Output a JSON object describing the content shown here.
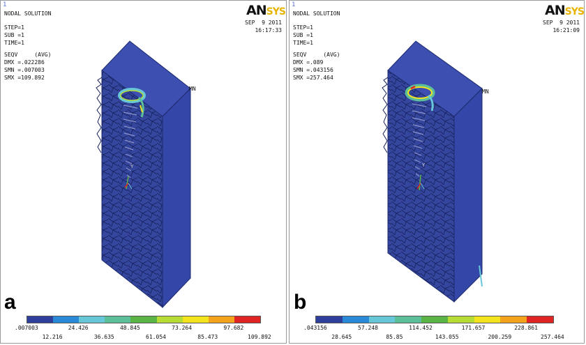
{
  "colormap": [
    "#2f3f9c",
    "#2b8ad8",
    "#67c7d8",
    "#5dbf99",
    "#5ab445",
    "#b7dc35",
    "#f3e41d",
    "#f5a21c",
    "#e02323"
  ],
  "panels": [
    {
      "id": "a",
      "corner_index": "1",
      "title": "NODAL SOLUTION",
      "step": "STEP=1",
      "sub": "SUB =1",
      "time": "TIME=1",
      "seqv": "SEQV     (AVG)",
      "dmx": "DMX =.022286",
      "smn": "SMN =.007003",
      "smx": "SMX =109.892",
      "logo_an": "AN",
      "logo_sys": "SYS",
      "date": "SEP  9 2011",
      "time_stamp": "16:17:33",
      "mn_label": "MN",
      "fig_label": "a",
      "ticks_top": [
        ".007003",
        "24.426",
        "48.845",
        "73.264",
        "97.682"
      ],
      "ticks_bottom": [
        "12.216",
        "36.635",
        "61.054",
        "85.473",
        "109.892"
      ]
    },
    {
      "id": "b",
      "corner_index": "1",
      "title": "NODAL SOLUTION",
      "step": "STEP=1",
      "sub": "SUB =1",
      "time": "TIME=1",
      "seqv": "SEQV     (AVG)",
      "dmx": "DMX =.089",
      "smn": "SMN =.043156",
      "smx": "SMX =257.464",
      "logo_an": "AN",
      "logo_sys": "SYS",
      "date": "SEP  9 2011",
      "time_stamp": "16:21:09",
      "mn_label": "MN",
      "fig_label": "b",
      "ticks_top": [
        ".043156",
        "57.248",
        "114.452",
        "171.657",
        "228.861"
      ],
      "ticks_bottom": [
        "28.645",
        "85.85",
        "143.055",
        "200.259",
        "257.464"
      ]
    }
  ]
}
